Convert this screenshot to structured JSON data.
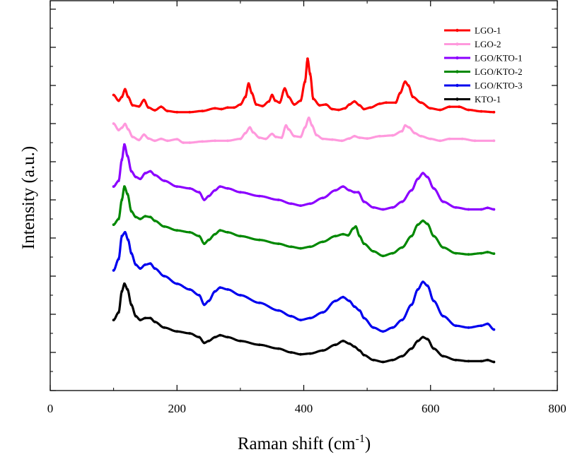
{
  "chart_data": {
    "type": "line",
    "title": "",
    "xlabel": "Raman shift (cm",
    "xlabel_sup": "-1",
    "xlabel_end": ")",
    "ylabel": "Intensity (a.u.)",
    "xlim": [
      0,
      800
    ],
    "x_ticks": [
      0,
      200,
      400,
      600,
      800
    ],
    "x_tick_labels": [
      "0",
      "200",
      "400",
      "600",
      "800"
    ],
    "y_tick_labels_shown": false,
    "grid": false,
    "legend_position": "top-right",
    "series": [
      {
        "name": "LGO-1",
        "color": "#ff0000",
        "offset": 7.3,
        "points": [
          [
            100,
            0.45
          ],
          [
            108,
            0.3
          ],
          [
            113,
            0.4
          ],
          [
            118,
            0.6
          ],
          [
            123,
            0.4
          ],
          [
            130,
            0.18
          ],
          [
            140,
            0.15
          ],
          [
            148,
            0.32
          ],
          [
            155,
            0.12
          ],
          [
            165,
            0.05
          ],
          [
            175,
            0.14
          ],
          [
            185,
            0.03
          ],
          [
            200,
            0.0
          ],
          [
            220,
            0.0
          ],
          [
            240,
            0.03
          ],
          [
            260,
            0.1
          ],
          [
            270,
            0.08
          ],
          [
            280,
            0.12
          ],
          [
            290,
            0.12
          ],
          [
            300,
            0.2
          ],
          [
            308,
            0.4
          ],
          [
            313,
            0.75
          ],
          [
            318,
            0.5
          ],
          [
            325,
            0.2
          ],
          [
            335,
            0.16
          ],
          [
            345,
            0.28
          ],
          [
            350,
            0.45
          ],
          [
            355,
            0.3
          ],
          [
            362,
            0.25
          ],
          [
            370,
            0.62
          ],
          [
            376,
            0.4
          ],
          [
            385,
            0.2
          ],
          [
            395,
            0.3
          ],
          [
            402,
            0.8
          ],
          [
            406,
            1.4
          ],
          [
            410,
            1.0
          ],
          [
            415,
            0.35
          ],
          [
            425,
            0.18
          ],
          [
            435,
            0.2
          ],
          [
            445,
            0.08
          ],
          [
            455,
            0.06
          ],
          [
            465,
            0.1
          ],
          [
            472,
            0.2
          ],
          [
            480,
            0.28
          ],
          [
            488,
            0.18
          ],
          [
            495,
            0.08
          ],
          [
            505,
            0.12
          ],
          [
            520,
            0.22
          ],
          [
            530,
            0.25
          ],
          [
            545,
            0.25
          ],
          [
            552,
            0.5
          ],
          [
            560,
            0.8
          ],
          [
            565,
            0.7
          ],
          [
            572,
            0.4
          ],
          [
            585,
            0.25
          ],
          [
            600,
            0.1
          ],
          [
            615,
            0.06
          ],
          [
            630,
            0.14
          ],
          [
            645,
            0.14
          ],
          [
            660,
            0.06
          ],
          [
            680,
            0.02
          ],
          [
            700,
            0.0
          ]
        ]
      },
      {
        "name": "LGO-2",
        "color": "#ff99dd",
        "offset": 6.55,
        "points": [
          [
            100,
            0.45
          ],
          [
            108,
            0.28
          ],
          [
            113,
            0.34
          ],
          [
            118,
            0.44
          ],
          [
            123,
            0.3
          ],
          [
            130,
            0.1
          ],
          [
            140,
            0.02
          ],
          [
            148,
            0.16
          ],
          [
            155,
            0.06
          ],
          [
            165,
            0.0
          ],
          [
            175,
            0.05
          ],
          [
            185,
            0.0
          ],
          [
            200,
            0.04
          ],
          [
            210,
            -0.05
          ],
          [
            220,
            -0.05
          ],
          [
            240,
            -0.02
          ],
          [
            260,
            0.0
          ],
          [
            280,
            0.0
          ],
          [
            300,
            0.05
          ],
          [
            308,
            0.2
          ],
          [
            315,
            0.35
          ],
          [
            320,
            0.22
          ],
          [
            330,
            0.08
          ],
          [
            340,
            0.05
          ],
          [
            350,
            0.18
          ],
          [
            356,
            0.1
          ],
          [
            365,
            0.08
          ],
          [
            372,
            0.4
          ],
          [
            376,
            0.3
          ],
          [
            385,
            0.12
          ],
          [
            395,
            0.1
          ],
          [
            402,
            0.35
          ],
          [
            408,
            0.6
          ],
          [
            413,
            0.4
          ],
          [
            420,
            0.15
          ],
          [
            430,
            0.05
          ],
          [
            445,
            0.03
          ],
          [
            460,
            0.0
          ],
          [
            472,
            0.06
          ],
          [
            480,
            0.12
          ],
          [
            488,
            0.08
          ],
          [
            500,
            0.06
          ],
          [
            520,
            0.12
          ],
          [
            540,
            0.14
          ],
          [
            555,
            0.25
          ],
          [
            560,
            0.4
          ],
          [
            566,
            0.35
          ],
          [
            575,
            0.2
          ],
          [
            585,
            0.12
          ],
          [
            600,
            0.05
          ],
          [
            615,
            0.0
          ],
          [
            630,
            0.05
          ],
          [
            650,
            0.05
          ],
          [
            670,
            0.0
          ],
          [
            700,
            0.0
          ]
        ]
      },
      {
        "name": "LGO/KTO-1",
        "color": "#8b00ff",
        "offset": 5.15,
        "points": [
          [
            100,
            0.2
          ],
          [
            108,
            0.35
          ],
          [
            113,
            0.9
          ],
          [
            117,
            1.3
          ],
          [
            122,
            1.0
          ],
          [
            128,
            0.6
          ],
          [
            135,
            0.45
          ],
          [
            142,
            0.4
          ],
          [
            150,
            0.55
          ],
          [
            158,
            0.6
          ],
          [
            165,
            0.5
          ],
          [
            180,
            0.35
          ],
          [
            200,
            0.2
          ],
          [
            220,
            0.15
          ],
          [
            235,
            0.05
          ],
          [
            243,
            -0.15
          ],
          [
            250,
            -0.05
          ],
          [
            260,
            0.1
          ],
          [
            268,
            0.2
          ],
          [
            280,
            0.15
          ],
          [
            300,
            0.05
          ],
          [
            330,
            -0.05
          ],
          [
            360,
            -0.15
          ],
          [
            380,
            -0.25
          ],
          [
            395,
            -0.3
          ],
          [
            410,
            -0.25
          ],
          [
            430,
            -0.1
          ],
          [
            450,
            0.1
          ],
          [
            462,
            0.2
          ],
          [
            472,
            0.1
          ],
          [
            480,
            0.05
          ],
          [
            486,
            0.05
          ],
          [
            495,
            -0.2
          ],
          [
            510,
            -0.35
          ],
          [
            525,
            -0.4
          ],
          [
            540,
            -0.35
          ],
          [
            555,
            -0.2
          ],
          [
            570,
            0.1
          ],
          [
            580,
            0.4
          ],
          [
            588,
            0.55
          ],
          [
            595,
            0.45
          ],
          [
            605,
            0.15
          ],
          [
            620,
            -0.2
          ],
          [
            640,
            -0.35
          ],
          [
            660,
            -0.4
          ],
          [
            680,
            -0.4
          ],
          [
            690,
            -0.36
          ],
          [
            700,
            -0.4
          ]
        ]
      },
      {
        "name": "LGO/KTO-2",
        "color": "#008800",
        "offset": 4.15,
        "points": [
          [
            100,
            0.2
          ],
          [
            108,
            0.35
          ],
          [
            113,
            0.85
          ],
          [
            117,
            1.2
          ],
          [
            122,
            1.0
          ],
          [
            128,
            0.55
          ],
          [
            135,
            0.4
          ],
          [
            142,
            0.35
          ],
          [
            150,
            0.42
          ],
          [
            158,
            0.4
          ],
          [
            165,
            0.3
          ],
          [
            180,
            0.15
          ],
          [
            200,
            0.05
          ],
          [
            220,
            0.0
          ],
          [
            235,
            -0.1
          ],
          [
            243,
            -0.3
          ],
          [
            250,
            -0.2
          ],
          [
            260,
            -0.05
          ],
          [
            268,
            0.05
          ],
          [
            280,
            0.0
          ],
          [
            300,
            -0.1
          ],
          [
            330,
            -0.2
          ],
          [
            360,
            -0.3
          ],
          [
            380,
            -0.38
          ],
          [
            395,
            -0.42
          ],
          [
            410,
            -0.38
          ],
          [
            430,
            -0.25
          ],
          [
            450,
            -0.1
          ],
          [
            462,
            -0.05
          ],
          [
            470,
            -0.08
          ],
          [
            478,
            0.1
          ],
          [
            482,
            0.15
          ],
          [
            488,
            -0.1
          ],
          [
            495,
            -0.3
          ],
          [
            510,
            -0.5
          ],
          [
            525,
            -0.62
          ],
          [
            540,
            -0.55
          ],
          [
            555,
            -0.4
          ],
          [
            570,
            -0.1
          ],
          [
            580,
            0.2
          ],
          [
            588,
            0.3
          ],
          [
            595,
            0.22
          ],
          [
            605,
            -0.1
          ],
          [
            620,
            -0.4
          ],
          [
            640,
            -0.55
          ],
          [
            660,
            -0.58
          ],
          [
            680,
            -0.55
          ],
          [
            690,
            -0.52
          ],
          [
            700,
            -0.56
          ]
        ]
      },
      {
        "name": "LGO/KTO-3",
        "color": "#0000ee",
        "offset": 3.15,
        "points": [
          [
            100,
            0.0
          ],
          [
            108,
            0.3
          ],
          [
            113,
            0.9
          ],
          [
            118,
            1.0
          ],
          [
            123,
            0.8
          ],
          [
            128,
            0.45
          ],
          [
            135,
            0.15
          ],
          [
            142,
            0.05
          ],
          [
            150,
            0.15
          ],
          [
            158,
            0.18
          ],
          [
            165,
            0.05
          ],
          [
            180,
            -0.15
          ],
          [
            200,
            -0.35
          ],
          [
            220,
            -0.5
          ],
          [
            235,
            -0.65
          ],
          [
            243,
            -0.9
          ],
          [
            250,
            -0.8
          ],
          [
            260,
            -0.55
          ],
          [
            268,
            -0.45
          ],
          [
            280,
            -0.5
          ],
          [
            300,
            -0.65
          ],
          [
            330,
            -0.85
          ],
          [
            360,
            -1.05
          ],
          [
            380,
            -1.2
          ],
          [
            395,
            -1.3
          ],
          [
            410,
            -1.25
          ],
          [
            430,
            -1.1
          ],
          [
            450,
            -0.8
          ],
          [
            462,
            -0.7
          ],
          [
            472,
            -0.8
          ],
          [
            480,
            -0.95
          ],
          [
            488,
            -1.05
          ],
          [
            495,
            -1.25
          ],
          [
            510,
            -1.5
          ],
          [
            525,
            -1.6
          ],
          [
            540,
            -1.5
          ],
          [
            555,
            -1.3
          ],
          [
            570,
            -0.9
          ],
          [
            580,
            -0.5
          ],
          [
            588,
            -0.3
          ],
          [
            595,
            -0.4
          ],
          [
            605,
            -0.8
          ],
          [
            620,
            -1.2
          ],
          [
            640,
            -1.45
          ],
          [
            660,
            -1.5
          ],
          [
            680,
            -1.45
          ],
          [
            690,
            -1.4
          ],
          [
            700,
            -1.55
          ]
        ]
      },
      {
        "name": "KTO-1",
        "color": "#000000",
        "offset": 1.85,
        "points": [
          [
            100,
            0.0
          ],
          [
            108,
            0.2
          ],
          [
            113,
            0.75
          ],
          [
            117,
            0.95
          ],
          [
            122,
            0.8
          ],
          [
            128,
            0.4
          ],
          [
            135,
            0.1
          ],
          [
            142,
            0.0
          ],
          [
            150,
            0.05
          ],
          [
            158,
            0.05
          ],
          [
            165,
            -0.05
          ],
          [
            180,
            -0.2
          ],
          [
            200,
            -0.3
          ],
          [
            220,
            -0.35
          ],
          [
            235,
            -0.45
          ],
          [
            243,
            -0.6
          ],
          [
            250,
            -0.55
          ],
          [
            260,
            -0.45
          ],
          [
            268,
            -0.4
          ],
          [
            280,
            -0.45
          ],
          [
            300,
            -0.55
          ],
          [
            330,
            -0.65
          ],
          [
            360,
            -0.75
          ],
          [
            380,
            -0.85
          ],
          [
            395,
            -0.9
          ],
          [
            410,
            -0.88
          ],
          [
            430,
            -0.8
          ],
          [
            450,
            -0.65
          ],
          [
            462,
            -0.55
          ],
          [
            472,
            -0.62
          ],
          [
            480,
            -0.7
          ],
          [
            488,
            -0.8
          ],
          [
            495,
            -0.92
          ],
          [
            510,
            -1.05
          ],
          [
            525,
            -1.1
          ],
          [
            540,
            -1.05
          ],
          [
            555,
            -0.95
          ],
          [
            570,
            -0.75
          ],
          [
            580,
            -0.55
          ],
          [
            588,
            -0.45
          ],
          [
            595,
            -0.5
          ],
          [
            605,
            -0.75
          ],
          [
            620,
            -0.95
          ],
          [
            640,
            -1.05
          ],
          [
            660,
            -1.08
          ],
          [
            680,
            -1.08
          ],
          [
            690,
            -1.05
          ],
          [
            700,
            -1.1
          ]
        ]
      }
    ]
  }
}
